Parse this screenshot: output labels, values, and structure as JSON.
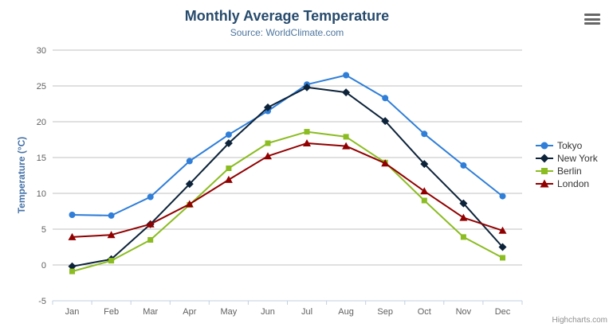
{
  "chart_data": {
    "type": "line",
    "title": "Monthly Average Temperature",
    "subtitle": "Source: WorldClimate.com",
    "xlabel": "",
    "ylabel": "Temperature (°C)",
    "categories": [
      "Jan",
      "Feb",
      "Mar",
      "Apr",
      "May",
      "Jun",
      "Jul",
      "Aug",
      "Sep",
      "Oct",
      "Nov",
      "Dec"
    ],
    "ylim": [
      -5,
      30
    ],
    "ytick_step": 5,
    "ytick_labels": [
      "-5",
      "0",
      "5",
      "10",
      "15",
      "20",
      "25",
      "30"
    ],
    "grid": true,
    "legend_position": "right",
    "series": [
      {
        "name": "Tokyo",
        "color": "#2f7ed8",
        "marker": "circle",
        "values": [
          7.0,
          6.9,
          9.5,
          14.5,
          18.2,
          21.5,
          25.2,
          26.5,
          23.3,
          18.3,
          13.9,
          9.6
        ]
      },
      {
        "name": "New York",
        "color": "#0d233a",
        "marker": "diamond",
        "values": [
          -0.2,
          0.8,
          5.7,
          11.3,
          17.0,
          22.0,
          24.8,
          24.1,
          20.1,
          14.1,
          8.6,
          2.5
        ]
      },
      {
        "name": "Berlin",
        "color": "#8bbc21",
        "marker": "square",
        "values": [
          -0.9,
          0.6,
          3.5,
          8.4,
          13.5,
          17.0,
          18.6,
          17.9,
          14.3,
          9.0,
          3.9,
          1.0
        ]
      },
      {
        "name": "London",
        "color": "#910000",
        "marker": "triangle",
        "values": [
          3.9,
          4.2,
          5.7,
          8.5,
          11.9,
          15.2,
          17.0,
          16.6,
          14.2,
          10.3,
          6.6,
          4.8
        ]
      }
    ],
    "colors": {
      "grid": "#c0c0c0",
      "axis_line": "#c0d0e0",
      "tick_label": "#606060",
      "title": "#274b6d",
      "subtitle": "#4d759e",
      "y_axis_title": "#4572a7",
      "legend_text": "#333333",
      "credits_text": "#909090",
      "menu_icon": "#666666",
      "background": "#ffffff"
    },
    "credits": "Highcharts.com"
  },
  "icons": {
    "context_menu": "hamburger-icon"
  }
}
